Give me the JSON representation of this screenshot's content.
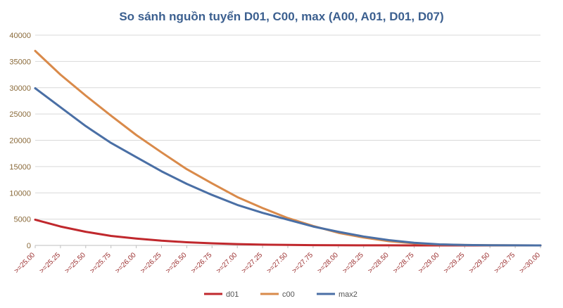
{
  "chart_data": {
    "type": "line",
    "title": "So sánh nguồn tuyển D01, C00, max (A00, A01, D01, D07)",
    "xlabel": "",
    "ylabel": "",
    "categories": [
      ">=25.00",
      ">=25.25",
      ">=25.50",
      ">=25.75",
      ">=26.00",
      ">=26.25",
      ">=26.50",
      ">=26.75",
      ">=27.00",
      ">=27.25",
      ">=27.50",
      ">=27.75",
      ">=28.00",
      ">=28.25",
      ">=28.50",
      ">=28.75",
      ">=29.00",
      ">=29.25",
      ">=29.50",
      ">=29.75",
      ">=30.00"
    ],
    "ylim": [
      0,
      40000
    ],
    "yticks": [
      0,
      5000,
      10000,
      15000,
      20000,
      25000,
      30000,
      35000,
      40000
    ],
    "grid": true,
    "legend_position": "bottom",
    "series": [
      {
        "name": "d01",
        "color": "#c0282d",
        "values": [
          4900,
          3600,
          2600,
          1800,
          1300,
          900,
          600,
          400,
          250,
          150,
          100,
          60,
          40,
          20,
          10,
          5,
          3,
          2,
          1,
          0,
          0
        ]
      },
      {
        "name": "c00",
        "color": "#d98a4a",
        "values": [
          37000,
          32500,
          28500,
          24700,
          21000,
          17700,
          14500,
          11800,
          9200,
          7100,
          5200,
          3700,
          2400,
          1500,
          800,
          400,
          180,
          80,
          30,
          10,
          0
        ]
      },
      {
        "name": "max2",
        "color": "#4a6fa5",
        "values": [
          29900,
          26300,
          22700,
          19500,
          16800,
          14100,
          11700,
          9600,
          7700,
          6200,
          4900,
          3600,
          2600,
          1700,
          1000,
          500,
          200,
          80,
          30,
          10,
          0
        ]
      }
    ]
  }
}
